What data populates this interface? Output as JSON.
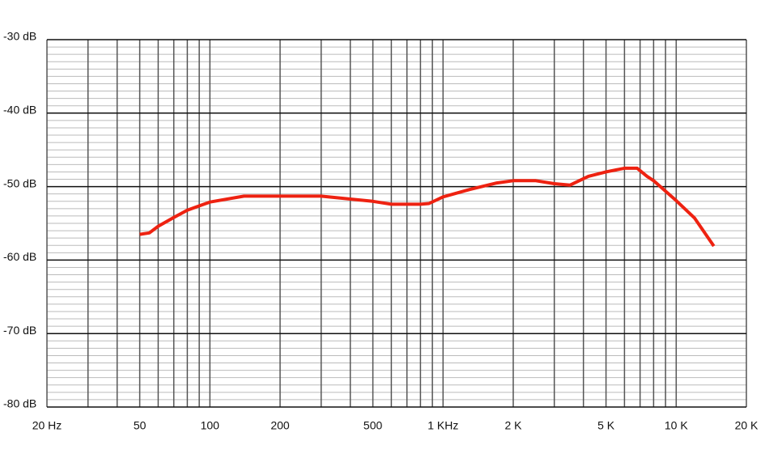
{
  "chart_data": {
    "type": "line",
    "xscale": "log",
    "xlim": [
      20,
      20000
    ],
    "ylim": [
      -80,
      -30
    ],
    "xticks": [
      {
        "value": 20,
        "label": "20 Hz"
      },
      50,
      100,
      200,
      500,
      {
        "value": 1000,
        "label": "1 KHz"
      },
      {
        "value": 2000,
        "label": "2 K"
      },
      {
        "value": 5000,
        "label": "5 K"
      },
      {
        "value": 10000,
        "label": "10 K"
      },
      {
        "value": 20000,
        "label": "20 K"
      }
    ],
    "xgrid": [
      20,
      30,
      40,
      50,
      60,
      70,
      80,
      90,
      100,
      200,
      300,
      400,
      500,
      600,
      700,
      800,
      900,
      1000,
      2000,
      3000,
      4000,
      5000,
      6000,
      7000,
      8000,
      9000,
      10000,
      20000
    ],
    "yticks": [
      {
        "value": -80,
        "label": "-80 dB"
      },
      {
        "value": -70,
        "label": "-70 dB"
      },
      {
        "value": -60,
        "label": "-60 dB"
      },
      {
        "value": -50,
        "label": "-50 dB"
      },
      {
        "value": -40,
        "label": "-40 dB"
      },
      {
        "value": -30,
        "label": "-30 dB"
      }
    ],
    "yminor_step": 1,
    "series": [
      {
        "color": "#ee2211",
        "x": [
          50,
          55,
          60,
          70,
          80,
          100,
          140,
          200,
          300,
          400,
          500,
          600,
          800,
          870,
          1000,
          1300,
          1700,
          2000,
          2500,
          3000,
          3500,
          4200,
          5000,
          6000,
          6800,
          7500,
          8000,
          10000,
          12000,
          14500
        ],
        "values": [
          -56.5,
          -56.3,
          -55.4,
          -54.2,
          -53.2,
          -52.1,
          -51.3,
          -51.3,
          -51.3,
          -51.7,
          -52.0,
          -52.4,
          -52.4,
          -52.3,
          -51.4,
          -50.4,
          -49.5,
          -49.2,
          -49.2,
          -49.6,
          -49.8,
          -48.6,
          -48.0,
          -47.5,
          -47.5,
          -48.6,
          -49.2,
          -51.9,
          -54.3,
          -58.1
        ]
      }
    ]
  }
}
